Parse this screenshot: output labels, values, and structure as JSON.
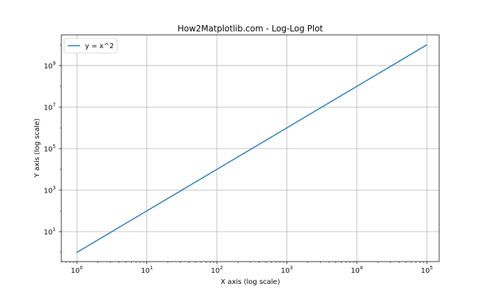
{
  "chart_data": {
    "type": "line",
    "title": "How2Matplotlib.com - Log-Log Plot",
    "xlabel": "X axis (log scale)",
    "ylabel": "Y axis (log scale)",
    "xscale": "log",
    "yscale": "log",
    "xlim": [
      0.6,
      150000
    ],
    "ylim": [
      0.36,
      30000000000
    ],
    "grid": true,
    "legend_position": "upper-left",
    "x_ticks": [
      1,
      10,
      100,
      1000,
      10000,
      100000
    ],
    "x_tick_labels": [
      {
        "base": "10",
        "exp": "0"
      },
      {
        "base": "10",
        "exp": "1"
      },
      {
        "base": "10",
        "exp": "2"
      },
      {
        "base": "10",
        "exp": "3"
      },
      {
        "base": "10",
        "exp": "4"
      },
      {
        "base": "10",
        "exp": "5"
      }
    ],
    "y_ticks": [
      10,
      1000,
      100000,
      10000000,
      1000000000
    ],
    "y_tick_labels": [
      {
        "base": "10",
        "exp": "1"
      },
      {
        "base": "10",
        "exp": "3"
      },
      {
        "base": "10",
        "exp": "5"
      },
      {
        "base": "10",
        "exp": "7"
      },
      {
        "base": "10",
        "exp": "9"
      }
    ],
    "series": [
      {
        "name": "y = x^2",
        "color": "#1f77b4",
        "x": [
          1,
          10,
          100,
          1000,
          10000,
          100000
        ],
        "y": [
          1,
          100,
          10000,
          1000000,
          100000000,
          10000000000
        ]
      }
    ]
  }
}
